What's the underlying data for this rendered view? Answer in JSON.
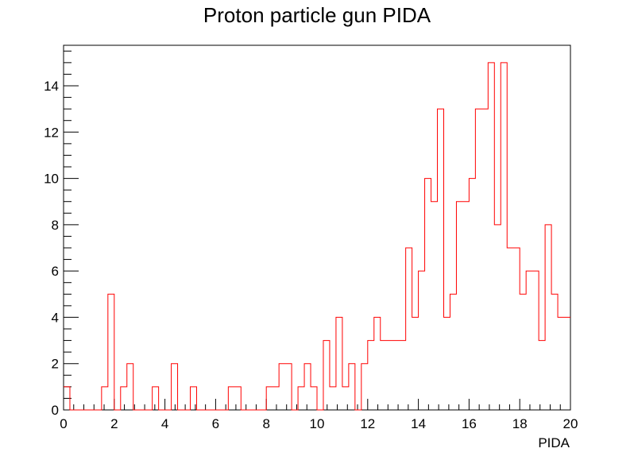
{
  "chart_data": {
    "type": "histogram",
    "title": "Proton particle gun PIDA",
    "xlabel": "PIDA",
    "ylabel": "",
    "xlim": [
      0,
      20
    ],
    "ylim": [
      0,
      15.75
    ],
    "bin_width": 0.25,
    "grid": false,
    "legend": "none",
    "line_color": "#ff0000",
    "x_ticks": [
      0,
      2,
      4,
      6,
      8,
      10,
      12,
      14,
      16,
      18,
      20
    ],
    "y_ticks": [
      0,
      2,
      4,
      6,
      8,
      10,
      12,
      14
    ],
    "values": [
      1,
      0,
      0,
      0,
      0,
      0,
      1,
      5,
      0,
      1,
      2,
      0,
      0,
      0,
      1,
      0,
      0,
      2,
      0,
      0,
      1,
      0,
      0,
      0,
      0,
      0,
      1,
      1,
      0,
      0,
      0,
      0,
      1,
      1,
      2,
      2,
      0,
      1,
      2,
      1,
      0,
      3,
      1,
      4,
      1,
      2,
      0,
      2,
      3,
      4,
      3,
      3,
      3,
      3,
      7,
      4,
      6,
      10,
      9,
      13,
      4,
      5,
      9,
      9,
      10,
      13,
      13,
      15,
      8,
      15,
      7,
      7,
      5,
      6,
      6,
      3,
      8,
      5,
      4,
      4
    ]
  }
}
